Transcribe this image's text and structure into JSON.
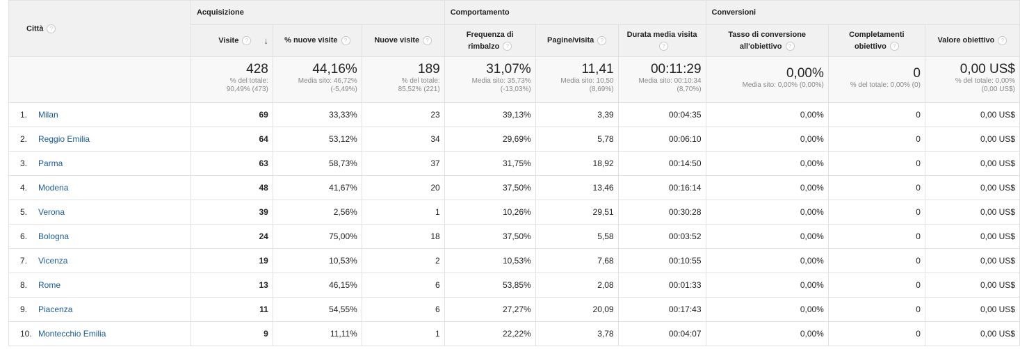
{
  "header": {
    "city_label": "Città",
    "help_glyph": "?",
    "groups": {
      "acquisition": "Acquisizione",
      "behavior": "Comportamento",
      "conversions": "Conversioni"
    },
    "columns": {
      "visits": "Visite",
      "pct_new": "% nuove visite",
      "new_visits": "Nuove visite",
      "bounce_line1": "Frequenza di",
      "bounce_line2": "rimbalzo",
      "pages": "Pagine/visita",
      "duration_line1": "Durata media visita",
      "conv_line1": "Tasso di conversione",
      "conv_line2": "all'obiettivo",
      "goal_line1": "Completamenti",
      "goal_line2": "obiettivo",
      "goal_value": "Valore obiettivo"
    },
    "sort_arrow": "↓"
  },
  "totals": {
    "visits": {
      "value": "428",
      "sub1": "% del totale:",
      "sub2": "90,49% (473)"
    },
    "pct_new": {
      "value": "44,16%",
      "sub1": "Media sito: 46,72%",
      "sub2": "(-5,49%)"
    },
    "new_visits": {
      "value": "189",
      "sub1": "% del totale:",
      "sub2": "85,52% (221)"
    },
    "bounce": {
      "value": "31,07%",
      "sub1": "Media sito: 35,73%",
      "sub2": "(-13,03%)"
    },
    "pages": {
      "value": "11,41",
      "sub1": "Media sito: 10,50",
      "sub2": "(8,69%)"
    },
    "duration": {
      "value": "00:11:29",
      "sub1": "Media sito: 00:10:34",
      "sub2": "(8,70%)"
    },
    "conv": {
      "value": "0,00%",
      "sub1": "Media sito: 0,00% (0,00%)",
      "sub2": ""
    },
    "goal_completions": {
      "value": "0",
      "sub1": "% del totale: 0,00% (0)",
      "sub2": ""
    },
    "goal_value": {
      "value": "0,00 US$",
      "sub1": "% del totale: 0,00%",
      "sub2": "(0,00 US$)"
    }
  },
  "rows": [
    {
      "rank": "1.",
      "city": "Milan",
      "visits": "69",
      "pct_new": "33,33%",
      "new_visits": "23",
      "bounce": "39,13%",
      "pages": "3,39",
      "duration": "00:04:35",
      "conv": "0,00%",
      "goals": "0",
      "value": "0,00 US$"
    },
    {
      "rank": "2.",
      "city": "Reggio Emilia",
      "visits": "64",
      "pct_new": "53,12%",
      "new_visits": "34",
      "bounce": "29,69%",
      "pages": "5,78",
      "duration": "00:06:10",
      "conv": "0,00%",
      "goals": "0",
      "value": "0,00 US$"
    },
    {
      "rank": "3.",
      "city": "Parma",
      "visits": "63",
      "pct_new": "58,73%",
      "new_visits": "37",
      "bounce": "31,75%",
      "pages": "18,92",
      "duration": "00:14:50",
      "conv": "0,00%",
      "goals": "0",
      "value": "0,00 US$"
    },
    {
      "rank": "4.",
      "city": "Modena",
      "visits": "48",
      "pct_new": "41,67%",
      "new_visits": "20",
      "bounce": "37,50%",
      "pages": "13,46",
      "duration": "00:16:14",
      "conv": "0,00%",
      "goals": "0",
      "value": "0,00 US$"
    },
    {
      "rank": "5.",
      "city": "Verona",
      "visits": "39",
      "pct_new": "2,56%",
      "new_visits": "1",
      "bounce": "10,26%",
      "pages": "29,51",
      "duration": "00:30:28",
      "conv": "0,00%",
      "goals": "0",
      "value": "0,00 US$"
    },
    {
      "rank": "6.",
      "city": "Bologna",
      "visits": "24",
      "pct_new": "75,00%",
      "new_visits": "18",
      "bounce": "37,50%",
      "pages": "5,58",
      "duration": "00:03:52",
      "conv": "0,00%",
      "goals": "0",
      "value": "0,00 US$"
    },
    {
      "rank": "7.",
      "city": "Vicenza",
      "visits": "19",
      "pct_new": "10,53%",
      "new_visits": "2",
      "bounce": "10,53%",
      "pages": "7,68",
      "duration": "00:10:55",
      "conv": "0,00%",
      "goals": "0",
      "value": "0,00 US$"
    },
    {
      "rank": "8.",
      "city": "Rome",
      "visits": "13",
      "pct_new": "46,15%",
      "new_visits": "6",
      "bounce": "53,85%",
      "pages": "2,08",
      "duration": "00:01:33",
      "conv": "0,00%",
      "goals": "0",
      "value": "0,00 US$"
    },
    {
      "rank": "9.",
      "city": "Piacenza",
      "visits": "11",
      "pct_new": "54,55%",
      "new_visits": "6",
      "bounce": "27,27%",
      "pages": "20,09",
      "duration": "00:17:43",
      "conv": "0,00%",
      "goals": "0",
      "value": "0,00 US$"
    },
    {
      "rank": "10.",
      "city": "Montecchio Emilia",
      "visits": "9",
      "pct_new": "11,11%",
      "new_visits": "1",
      "bounce": "22,22%",
      "pages": "3,78",
      "duration": "00:04:07",
      "conv": "0,00%",
      "goals": "0",
      "value": "0,00 US$"
    }
  ],
  "colors": {
    "link": "#1a5b9c",
    "header_bg": "#f1f1f1",
    "totals_bg": "#f8f8f8",
    "border": "#e1e1e1",
    "muted_text": "#888888"
  }
}
